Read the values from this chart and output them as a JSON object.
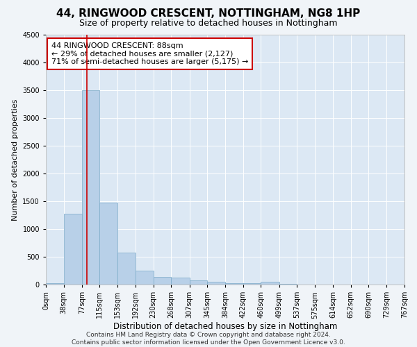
{
  "title": "44, RINGWOOD CRESCENT, NOTTINGHAM, NG8 1HP",
  "subtitle": "Size of property relative to detached houses in Nottingham",
  "xlabel": "Distribution of detached houses by size in Nottingham",
  "ylabel": "Number of detached properties",
  "bar_color": "#b8d0e8",
  "bar_edge_color": "#7aaac8",
  "annotation_box_color": "#cc0000",
  "annotation_line_color": "#cc0000",
  "property_line_x": 88,
  "annotation_text": "44 RINGWOOD CRESCENT: 88sqm\n← 29% of detached houses are smaller (2,127)\n71% of semi-detached houses are larger (5,175) →",
  "bins": [
    0,
    38,
    77,
    115,
    153,
    192,
    230,
    268,
    307,
    345,
    384,
    422,
    460,
    499,
    537,
    575,
    614,
    652,
    690,
    729,
    767
  ],
  "counts": [
    30,
    1270,
    3500,
    1480,
    580,
    255,
    135,
    120,
    75,
    45,
    30,
    25,
    50,
    10,
    5,
    3,
    2,
    1,
    1,
    1
  ],
  "ylim": [
    0,
    4500
  ],
  "yticks": [
    0,
    500,
    1000,
    1500,
    2000,
    2500,
    3000,
    3500,
    4000,
    4500
  ],
  "background_color": "#f0f4f8",
  "plot_bg_color": "#dce8f4",
  "footer_text": "Contains HM Land Registry data © Crown copyright and database right 2024.\nContains public sector information licensed under the Open Government Licence v3.0.",
  "title_fontsize": 11,
  "subtitle_fontsize": 9,
  "annotation_fontsize": 8,
  "tick_label_fontsize": 7,
  "ylabel_fontsize": 8,
  "xlabel_fontsize": 8.5,
  "footer_fontsize": 6.5
}
